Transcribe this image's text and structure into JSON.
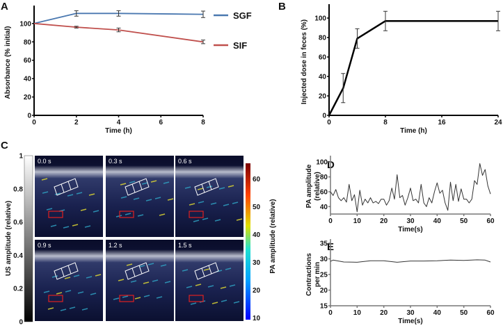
{
  "chart_data": [
    {
      "panel": "A",
      "type": "line",
      "xlabel": "Time (h)",
      "ylabel": "Absorbance (% initial)",
      "xticks": [
        0,
        2,
        4,
        6,
        8
      ],
      "yticks": [
        0,
        20,
        40,
        60,
        80,
        100
      ],
      "xlim": [
        0,
        8
      ],
      "ylim": [
        0,
        115
      ],
      "legend": "right",
      "series": [
        {
          "name": "SGF",
          "color": "#4a78b0",
          "x": [
            0,
            2,
            4,
            8
          ],
          "y": [
            100,
            111,
            111,
            110
          ],
          "err": [
            0,
            3,
            3,
            3.5
          ]
        },
        {
          "name": "SIF",
          "color": "#c0504d",
          "x": [
            0,
            2,
            4,
            8
          ],
          "y": [
            100,
            96,
            93,
            80
          ],
          "err": [
            0,
            1,
            2,
            2
          ]
        }
      ]
    },
    {
      "panel": "B",
      "type": "line",
      "xlabel": "Time (h)",
      "ylabel": "Injected dose in feces (%)",
      "xticks": [
        0,
        8,
        16,
        24
      ],
      "yticks": [
        0,
        20,
        40,
        60,
        80,
        100
      ],
      "xlim": [
        0,
        24
      ],
      "ylim": [
        0,
        110
      ],
      "series": [
        {
          "name": "dose",
          "color": "#000000",
          "x": [
            0,
            2,
            4,
            8,
            24
          ],
          "y": [
            0,
            28,
            79,
            97,
            97
          ],
          "err": [
            0,
            15,
            10,
            10,
            10
          ]
        }
      ]
    },
    {
      "panel": "C",
      "type": "heatmap",
      "frames": [
        "0.0 s",
        "0.3 s",
        "0.6 s",
        "0.9 s",
        "1.2 s",
        "1.5 s"
      ],
      "us_colorbar": {
        "label": "US amplitude (relative)",
        "ticks": [
          "0",
          "0.2",
          "0.4",
          "0.6",
          "0.8",
          "1"
        ]
      },
      "pa_colorbar": {
        "label": "PA amplitude (relative)",
        "ticks": [
          "10",
          "20",
          "30",
          "40",
          "50",
          "60"
        ]
      }
    },
    {
      "panel": "D",
      "type": "line",
      "xlabel": "Time(s)",
      "ylabel": "PA amplitude (relative)",
      "xticks": [
        0,
        10,
        20,
        30,
        40,
        50,
        60
      ],
      "yticks": [
        40,
        60,
        80,
        100
      ],
      "xlim": [
        0,
        60
      ],
      "ylim": [
        30,
        103
      ],
      "series": [
        {
          "name": "PA",
          "color": "#333333",
          "y": [
            60,
            55,
            63,
            52,
            48,
            52,
            46,
            70,
            48,
            56,
            33,
            62,
            42,
            50,
            45,
            52,
            45,
            47,
            44,
            50,
            50,
            42,
            48,
            65,
            50,
            83,
            52,
            55,
            42,
            52,
            65,
            48,
            50,
            45,
            70,
            45,
            40,
            52,
            45,
            60,
            72,
            58,
            62,
            45,
            35,
            73,
            48,
            70,
            47,
            64,
            50,
            50,
            45,
            50,
            75,
            70,
            98,
            82,
            90,
            68,
            57
          ]
        }
      ]
    },
    {
      "panel": "E",
      "type": "line",
      "xlabel": "Time(s)",
      "ylabel": "Contractions per min",
      "xticks": [
        0,
        10,
        20,
        30,
        40,
        50,
        60
      ],
      "yticks": [
        15,
        20,
        25,
        30,
        35
      ],
      "xlim": [
        0,
        60
      ],
      "ylim": [
        15,
        35
      ],
      "series": [
        {
          "name": "contractions",
          "color": "#333333",
          "x": [
            0,
            1,
            5,
            10,
            15,
            20,
            25,
            30,
            35,
            40,
            45,
            50,
            55,
            58,
            60
          ],
          "y": [
            29.2,
            29.6,
            29.0,
            28.9,
            29.4,
            29.4,
            28.9,
            29.3,
            29.3,
            29.4,
            29.6,
            29.5,
            29.7,
            29.6,
            29.0
          ]
        }
      ]
    }
  ],
  "panel_labels": [
    "A",
    "B",
    "C",
    "D",
    "E"
  ],
  "ylabel_e_line1": "Contractions",
  "ylabel_e_line2": "per min",
  "ylabel_d_line1": "PA amplitude",
  "ylabel_d_line2": "(relative)"
}
